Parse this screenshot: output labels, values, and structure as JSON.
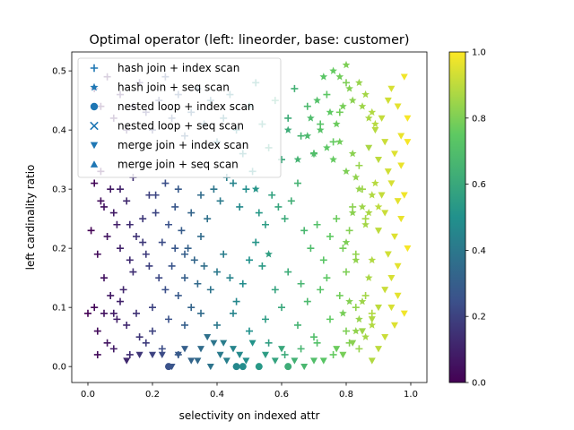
{
  "chart_data": {
    "type": "scatter",
    "title": "Optimal operator (left: lineorder, base: customer)",
    "xlabel": "selectivity on indexed attr",
    "ylabel": "left cardinality ratio",
    "xlim": [
      -0.05,
      1.05
    ],
    "ylim": [
      -0.027,
      0.532
    ],
    "xticks": [
      "0.0",
      "0.2",
      "0.4",
      "0.6",
      "0.8",
      "1.0"
    ],
    "yticks": [
      "0.0",
      "0.1",
      "0.2",
      "0.3",
      "0.4",
      "0.5"
    ],
    "colormap": "viridis",
    "color_value_label": "selectivity on indexed attr",
    "colorbar_range": [
      0.0,
      1.0
    ],
    "colorbar_ticks": [
      "0.0",
      "0.2",
      "0.4",
      "0.6",
      "0.8",
      "1.0"
    ],
    "legend_position": "upper-left",
    "series": [
      {
        "name": "hash join + index scan",
        "marker": "plus",
        "points": [
          [
            0.02,
            0.31
          ],
          [
            0.04,
            0.33
          ],
          [
            0.05,
            0.27
          ],
          [
            0.01,
            0.23
          ],
          [
            0.03,
            0.19
          ],
          [
            0.06,
            0.22
          ],
          [
            0.08,
            0.26
          ],
          [
            0.1,
            0.3
          ],
          [
            0.12,
            0.28
          ],
          [
            0.14,
            0.32
          ],
          [
            0.02,
            0.1
          ],
          [
            0.05,
            0.15
          ],
          [
            0.07,
            0.12
          ],
          [
            0.09,
            0.08
          ],
          [
            0.11,
            0.13
          ],
          [
            0.13,
            0.18
          ],
          [
            0.15,
            0.22
          ],
          [
            0.17,
            0.25
          ],
          [
            0.19,
            0.29
          ],
          [
            0.21,
            0.26
          ],
          [
            0.23,
            0.21
          ],
          [
            0.25,
            0.24
          ],
          [
            0.27,
            0.27
          ],
          [
            0.29,
            0.23
          ],
          [
            0.31,
            0.2
          ],
          [
            0.33,
            0.18
          ],
          [
            0.35,
            0.22
          ],
          [
            0.03,
            0.06
          ],
          [
            0.06,
            0.04
          ],
          [
            0.08,
            0.09
          ],
          [
            0.12,
            0.07
          ],
          [
            0.16,
            0.05
          ],
          [
            0.2,
            0.1
          ],
          [
            0.22,
            0.15
          ],
          [
            0.24,
            0.13
          ],
          [
            0.26,
            0.17
          ],
          [
            0.28,
            0.12
          ],
          [
            0.3,
            0.15
          ],
          [
            0.32,
            0.1
          ],
          [
            0.34,
            0.14
          ],
          [
            0.36,
            0.17
          ],
          [
            0.38,
            0.13
          ],
          [
            0.4,
            0.16
          ],
          [
            0.42,
            0.19
          ],
          [
            0.44,
            0.15
          ],
          [
            0.46,
            0.11
          ],
          [
            0.48,
            0.14
          ],
          [
            0.5,
            0.18
          ],
          [
            0.52,
            0.21
          ],
          [
            0.54,
            0.17
          ],
          [
            0.1,
            0.2
          ],
          [
            0.14,
            0.16
          ],
          [
            0.18,
            0.19
          ],
          [
            0.04,
            0.28
          ],
          [
            0.07,
            0.3
          ],
          [
            0.09,
            0.24
          ],
          [
            0.13,
            0.24
          ],
          [
            0.17,
            0.21
          ],
          [
            0.19,
            0.17
          ],
          [
            0.21,
            0.29
          ],
          [
            0.24,
            0.31
          ],
          [
            0.27,
            0.2
          ],
          [
            0.3,
            0.19
          ],
          [
            0.28,
            0.3
          ],
          [
            0.32,
            0.26
          ],
          [
            0.35,
            0.29
          ],
          [
            0.37,
            0.25
          ],
          [
            0.39,
            0.3
          ],
          [
            0.41,
            0.28
          ],
          [
            0.43,
            0.32
          ],
          [
            0.45,
            0.31
          ],
          [
            0.47,
            0.27
          ],
          [
            0.49,
            0.3
          ],
          [
            0.51,
            0.33
          ],
          [
            0.53,
            0.26
          ],
          [
            0.55,
            0.24
          ],
          [
            0.57,
            0.29
          ],
          [
            0.59,
            0.27
          ],
          [
            0.61,
            0.25
          ],
          [
            0.63,
            0.28
          ],
          [
            0.65,
            0.31
          ],
          [
            0.67,
            0.23
          ],
          [
            0.69,
            0.2
          ],
          [
            0.71,
            0.24
          ],
          [
            0.73,
            0.18
          ],
          [
            0.75,
            0.22
          ],
          [
            0.77,
            0.25
          ],
          [
            0.79,
            0.2
          ],
          [
            0.81,
            0.23
          ],
          [
            0.83,
            0.19
          ],
          [
            0.02,
            0.47
          ],
          [
            0.04,
            0.44
          ],
          [
            0.06,
            0.49
          ],
          [
            0.08,
            0.42
          ],
          [
            0.1,
            0.46
          ],
          [
            0.12,
            0.4
          ],
          [
            0.14,
            0.44
          ],
          [
            0.16,
            0.48
          ],
          [
            0.18,
            0.43
          ],
          [
            0.2,
            0.4
          ],
          [
            0.22,
            0.45
          ],
          [
            0.24,
            0.49
          ],
          [
            0.26,
            0.42
          ],
          [
            0.28,
            0.46
          ],
          [
            0.3,
            0.39
          ],
          [
            0.32,
            0.43
          ],
          [
            0.34,
            0.47
          ],
          [
            0.36,
            0.41
          ],
          [
            0.38,
            0.45
          ],
          [
            0.4,
            0.38
          ],
          [
            0.42,
            0.42
          ],
          [
            0.44,
            0.46
          ],
          [
            0.46,
            0.4
          ],
          [
            0.48,
            0.36
          ],
          [
            0.5,
            0.44
          ],
          [
            0.52,
            0.48
          ],
          [
            0.54,
            0.41
          ],
          [
            0.56,
            0.37
          ],
          [
            0.58,
            0.45
          ],
          [
            0.6,
            0.35
          ],
          [
            0.62,
            0.42
          ],
          [
            0.64,
            0.47
          ],
          [
            0.66,
            0.39
          ],
          [
            0.68,
            0.44
          ],
          [
            0.7,
            0.36
          ],
          [
            0.72,
            0.41
          ],
          [
            0.74,
            0.46
          ],
          [
            0.76,
            0.38
          ],
          [
            0.78,
            0.43
          ],
          [
            0.8,
            0.48
          ],
          [
            0.0,
            0.09
          ],
          [
            0.05,
            0.09
          ],
          [
            0.1,
            0.11
          ],
          [
            0.15,
            0.09
          ],
          [
            0.2,
            0.06
          ],
          [
            0.25,
            0.08
          ],
          [
            0.3,
            0.07
          ],
          [
            0.35,
            0.09
          ],
          [
            0.4,
            0.07
          ],
          [
            0.45,
            0.09
          ],
          [
            0.5,
            0.06
          ],
          [
            0.55,
            0.08
          ],
          [
            0.6,
            0.1
          ],
          [
            0.65,
            0.07
          ],
          [
            0.7,
            0.05
          ],
          [
            0.75,
            0.08
          ],
          [
            0.8,
            0.06
          ],
          [
            0.83,
            0.1
          ],
          [
            0.86,
            0.12
          ],
          [
            0.88,
            0.09
          ],
          [
            0.03,
            0.02
          ],
          [
            0.08,
            0.03
          ],
          [
            0.13,
            0.02
          ],
          [
            0.18,
            0.04
          ],
          [
            0.23,
            0.03
          ],
          [
            0.28,
            0.02
          ],
          [
            0.56,
            0.04
          ],
          [
            0.61,
            0.02
          ],
          [
            0.66,
            0.03
          ],
          [
            0.71,
            0.04
          ],
          [
            0.76,
            0.02
          ],
          [
            0.81,
            0.04
          ],
          [
            0.84,
            0.03
          ],
          [
            0.58,
            0.13
          ],
          [
            0.62,
            0.16
          ],
          [
            0.66,
            0.14
          ],
          [
            0.68,
            0.11
          ],
          [
            0.72,
            0.13
          ],
          [
            0.74,
            0.15
          ],
          [
            0.78,
            0.12
          ],
          [
            0.8,
            0.16
          ],
          [
            0.82,
            0.27
          ],
          [
            0.85,
            0.3
          ],
          [
            0.86,
            0.25
          ],
          [
            0.84,
            0.34
          ]
        ]
      },
      {
        "name": "hash join + seq scan",
        "marker": "star",
        "points": [
          [
            0.73,
            0.49
          ],
          [
            0.76,
            0.5
          ],
          [
            0.78,
            0.49
          ],
          [
            0.8,
            0.51
          ],
          [
            0.81,
            0.47
          ],
          [
            0.82,
            0.45
          ],
          [
            0.84,
            0.48
          ],
          [
            0.85,
            0.44
          ],
          [
            0.86,
            0.46
          ],
          [
            0.87,
            0.42
          ],
          [
            0.88,
            0.43
          ],
          [
            0.89,
            0.41
          ],
          [
            0.75,
            0.43
          ],
          [
            0.77,
            0.41
          ],
          [
            0.79,
            0.44
          ],
          [
            0.72,
            0.4
          ],
          [
            0.71,
            0.45
          ],
          [
            0.69,
            0.42
          ],
          [
            0.68,
            0.39
          ],
          [
            0.7,
            0.36
          ],
          [
            0.74,
            0.37
          ],
          [
            0.76,
            0.35
          ],
          [
            0.78,
            0.38
          ],
          [
            0.8,
            0.33
          ],
          [
            0.82,
            0.36
          ],
          [
            0.83,
            0.32
          ],
          [
            0.84,
            0.3
          ],
          [
            0.85,
            0.27
          ],
          [
            0.86,
            0.24
          ],
          [
            0.87,
            0.26
          ],
          [
            0.88,
            0.29
          ],
          [
            0.89,
            0.31
          ],
          [
            0.9,
            0.27
          ],
          [
            0.88,
            0.18
          ],
          [
            0.87,
            0.15
          ],
          [
            0.85,
            0.11
          ],
          [
            0.84,
            0.08
          ],
          [
            0.83,
            0.06
          ],
          [
            0.86,
            0.05
          ],
          [
            0.88,
            0.07
          ],
          [
            0.81,
            0.11
          ],
          [
            0.79,
            0.09
          ],
          [
            0.82,
            0.26
          ],
          [
            0.8,
            0.21
          ],
          [
            0.83,
            0.18
          ],
          [
            0.56,
            0.19
          ],
          [
            0.52,
            0.3
          ],
          [
            0.65,
            0.35
          ],
          [
            0.62,
            0.4
          ]
        ]
      },
      {
        "name": "nested loop + index scan",
        "marker": "circle",
        "points": [
          [
            0.25,
            0.0
          ],
          [
            0.46,
            0.0
          ],
          [
            0.48,
            0.0
          ],
          [
            0.53,
            0.0
          ],
          [
            0.62,
            0.0
          ]
        ]
      },
      {
        "name": "nested loop + seq scan",
        "marker": "x",
        "points": []
      },
      {
        "name": "merge join + index scan",
        "marker": "triangle-down",
        "points": [
          [
            0.16,
            0.02
          ],
          [
            0.23,
            0.02
          ],
          [
            0.28,
            0.02
          ],
          [
            0.32,
            0.01
          ],
          [
            0.35,
            0.03
          ],
          [
            0.37,
            0.05
          ],
          [
            0.39,
            0.04
          ],
          [
            0.41,
            0.02
          ],
          [
            0.43,
            0.01
          ],
          [
            0.45,
            0.03
          ],
          [
            0.47,
            0.02
          ],
          [
            0.49,
            0.01
          ],
          [
            0.51,
            0.04
          ],
          [
            0.55,
            0.02
          ],
          [
            0.58,
            0.01
          ],
          [
            0.6,
            0.03
          ],
          [
            0.64,
            0.01
          ],
          [
            0.67,
            0.0
          ],
          [
            0.7,
            0.01
          ],
          [
            0.73,
            0.01
          ],
          [
            0.77,
            0.03
          ],
          [
            0.79,
            0.02
          ],
          [
            0.82,
            0.04
          ],
          [
            0.85,
            0.06
          ],
          [
            0.88,
            0.08
          ],
          [
            0.9,
            0.1
          ],
          [
            0.92,
            0.13
          ],
          [
            0.94,
            0.15
          ],
          [
            0.96,
            0.12
          ],
          [
            0.98,
            0.09
          ],
          [
            0.95,
            0.07
          ],
          [
            0.92,
            0.05
          ],
          [
            0.9,
            0.03
          ],
          [
            0.88,
            0.01
          ],
          [
            0.93,
            0.19
          ],
          [
            0.95,
            0.22
          ],
          [
            0.97,
            0.25
          ],
          [
            0.99,
            0.2
          ],
          [
            0.96,
            0.28
          ],
          [
            0.94,
            0.31
          ],
          [
            0.92,
            0.26
          ],
          [
            0.9,
            0.23
          ],
          [
            0.91,
            0.29
          ],
          [
            0.93,
            0.33
          ],
          [
            0.95,
            0.36
          ],
          [
            0.97,
            0.39
          ],
          [
            0.99,
            0.42
          ],
          [
            0.96,
            0.44
          ],
          [
            0.94,
            0.47
          ],
          [
            0.98,
            0.49
          ],
          [
            0.92,
            0.38
          ],
          [
            0.9,
            0.35
          ],
          [
            0.91,
            0.42
          ],
          [
            0.93,
            0.45
          ],
          [
            0.89,
            0.4
          ],
          [
            0.87,
            0.37
          ],
          [
            0.99,
            0.38
          ],
          [
            0.97,
            0.34
          ],
          [
            0.98,
            0.29
          ],
          [
            0.96,
            0.17
          ],
          [
            0.94,
            0.1
          ],
          [
            0.12,
            0.01
          ],
          [
            0.2,
            0.02
          ],
          [
            0.26,
            0.0
          ],
          [
            0.3,
            0.03
          ],
          [
            0.34,
            0.01
          ],
          [
            0.38,
            0.0
          ],
          [
            0.42,
            0.04
          ]
        ]
      },
      {
        "name": "merge join + seq scan",
        "marker": "triangle-up",
        "points": []
      }
    ]
  }
}
